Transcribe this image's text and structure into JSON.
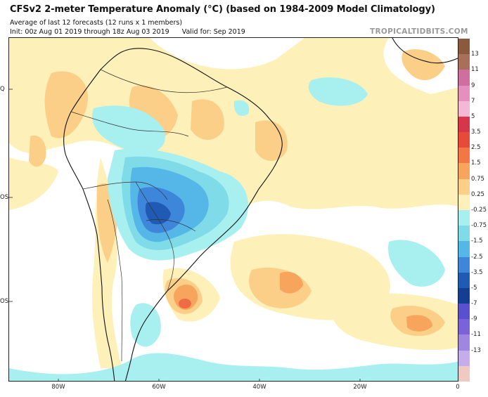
{
  "header": {
    "title": "CFSv2 2-meter Temperature Anomaly (°C) (based on 1984-2009 Model Climatology)",
    "subtitle": "Average of last 12 forecasts (12 runs x 1 members)",
    "init": "Init: 00z Aug 01 2019 through 18z Aug 03 2019",
    "valid": "Valid for: Sep 2019",
    "brand": "TROPICALTIDBITS.COM"
  },
  "axes": {
    "lat_labels": [
      "Q",
      "OS",
      "OS"
    ],
    "lon_labels": [
      "80W",
      "60W",
      "40W",
      "20W",
      "0"
    ]
  },
  "colorbar": {
    "levels": [
      "13",
      "11",
      "9",
      "7",
      "5",
      "3.5",
      "2.5",
      "1.5",
      "0.75",
      "0.25",
      "-0.25",
      "-0.75",
      "-1.5",
      "-2.5",
      "-3.5",
      "-5",
      "-7",
      "-9",
      "-11",
      "-13"
    ],
    "colors": [
      "#8b5a3c",
      "#a8705a",
      "#cf6fa0",
      "#e58fbf",
      "#f4b8d6",
      "#d5364a",
      "#e84a3a",
      "#f37744",
      "#f7a45c",
      "#fbcf87",
      "#fdf0b8",
      "#a8f0f0",
      "#7fdbe8",
      "#55b6e8",
      "#3e86d9",
      "#1f5bb4",
      "#123f8f",
      "#5a4fcf",
      "#7a63d8",
      "#9f86e0",
      "#c5adeb",
      "#f0c9c2"
    ]
  },
  "map": {
    "description_region": "South America and South Atlantic",
    "colors": {
      "warm_light": "#fdf0b8",
      "warm_mid": "#fbcf87",
      "warm_strong": "#f7a45c",
      "warm_hot": "#ef6b45",
      "cool_light": "#a8f0f0",
      "cool_mid": "#7fdbe8",
      "cool_blue": "#55b6e8",
      "cool_deep": "#3e86d9",
      "cool_deepest": "#1f5bb4",
      "land_outline": "#111111",
      "border": "#333333"
    }
  }
}
